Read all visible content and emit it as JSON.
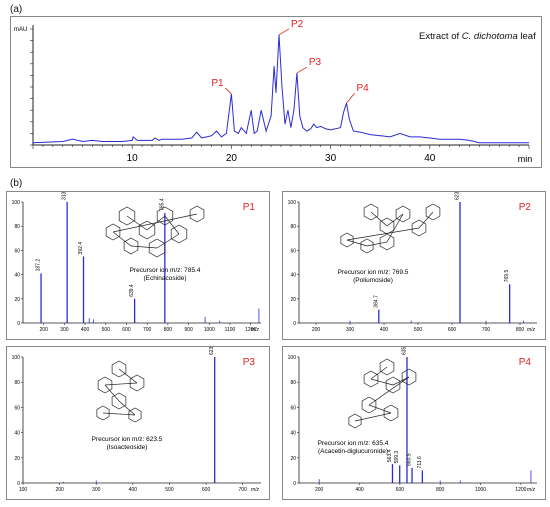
{
  "labels": {
    "a": "(a)",
    "b": "(b)"
  },
  "chromatogram": {
    "title": "Extract of C. dichotoma leaf",
    "title_prefix": "Extract of ",
    "title_italic": "C. dichotoma",
    "title_suffix": " leaf",
    "y_unit": "mAU",
    "x_unit": "min",
    "x_ticks": [
      "10",
      "20",
      "30",
      "40"
    ],
    "peaks": [
      {
        "label": "P1",
        "time": 20.0
      },
      {
        "label": "P2",
        "time": 24.8
      },
      {
        "label": "P3",
        "time": 26.6
      },
      {
        "label": "P4",
        "time": 31.6
      }
    ]
  },
  "colors": {
    "trace": "#2b2bd6",
    "peak_label": "#e02020",
    "axis": "#222222"
  },
  "chart_data": [
    {
      "type": "line",
      "panel": "(a)",
      "title": "Extract of C. dichotoma leaf",
      "ylabel": "mAU",
      "xlabel": "min",
      "xlim": [
        0,
        50
      ],
      "ylim": [
        0,
        1
      ],
      "x": [
        0,
        3,
        4,
        5,
        6,
        7,
        8,
        9,
        10,
        10.1,
        10.5,
        11,
        12,
        12.3,
        12.7,
        13,
        14,
        15,
        16,
        16.5,
        17,
        17.5,
        18,
        18.5,
        19,
        19.5,
        20,
        20.3,
        20.7,
        21,
        21.5,
        22,
        22.3,
        22.6,
        23,
        23.5,
        24,
        24.3,
        24.5,
        24.8,
        25.1,
        25.4,
        25.7,
        26,
        26.3,
        26.6,
        26.9,
        27.2,
        27.6,
        28,
        28.3,
        28.6,
        29,
        29.5,
        30,
        30.5,
        31,
        31.3,
        31.6,
        31.9,
        32.3,
        33,
        34,
        35,
        36,
        37,
        38,
        39,
        40,
        41,
        42,
        43,
        44,
        45,
        46,
        50
      ],
      "y": [
        0.02,
        0.03,
        0.05,
        0.03,
        0.04,
        0.03,
        0.03,
        0.03,
        0.04,
        0.07,
        0.04,
        0.04,
        0.04,
        0.06,
        0.04,
        0.05,
        0.05,
        0.05,
        0.06,
        0.11,
        0.06,
        0.07,
        0.08,
        0.12,
        0.07,
        0.1,
        0.44,
        0.12,
        0.1,
        0.15,
        0.1,
        0.3,
        0.1,
        0.12,
        0.3,
        0.12,
        0.25,
        0.68,
        0.45,
        0.95,
        0.5,
        0.18,
        0.3,
        0.15,
        0.3,
        0.62,
        0.25,
        0.15,
        0.12,
        0.14,
        0.18,
        0.15,
        0.16,
        0.14,
        0.13,
        0.14,
        0.15,
        0.28,
        0.36,
        0.22,
        0.12,
        0.11,
        0.09,
        0.08,
        0.07,
        0.1,
        0.07,
        0.07,
        0.06,
        0.05,
        0.05,
        0.05,
        0.04,
        0.02,
        0.02,
        0.02
      ]
    },
    {
      "type": "bar",
      "panel": "P1",
      "precursor_text": "Precursor ion m/z: 785.4",
      "compound": "(Echinacoside)",
      "xlabel": "m/z",
      "xlim": [
        100,
        800
      ],
      "ylim": [
        0,
        100
      ],
      "x_ticks": [
        "200",
        "300",
        "400",
        "500",
        "600",
        "700",
        "800",
        "900",
        "1000",
        "1100",
        "1200"
      ],
      "y_ticks": [
        "0",
        "20",
        "40",
        "60",
        "80",
        "100"
      ],
      "peaks": [
        {
          "mz": 187.2,
          "intensity": 41,
          "label": "187.2"
        },
        {
          "mz": 313.2,
          "intensity": 100,
          "label": "313.2"
        },
        {
          "mz": 392.4,
          "intensity": 55,
          "label": "392.4"
        },
        {
          "mz": 639.4,
          "intensity": 20,
          "label": "639.4"
        },
        {
          "mz": 785.4,
          "intensity": 91,
          "label": "785.4"
        }
      ]
    },
    {
      "type": "bar",
      "panel": "P2",
      "precursor_text": "Precursor ion m/z: 769.5",
      "compound": "(Poliumoside)",
      "xlabel": "m/z",
      "ylim": [
        0,
        100
      ],
      "x_ticks": [
        "200",
        "300",
        "400",
        "500",
        "600",
        "700",
        "800"
      ],
      "y_ticks": [
        "0",
        "20",
        "40",
        "60",
        "80",
        "100"
      ],
      "peaks": [
        {
          "mz": 384.7,
          "intensity": 11,
          "label": "384.7"
        },
        {
          "mz": 623.5,
          "intensity": 100,
          "label": "623.5"
        },
        {
          "mz": 769.5,
          "intensity": 32,
          "label": "769.5"
        }
      ]
    },
    {
      "type": "bar",
      "panel": "P3",
      "precursor_text": "Precursor ion m/z: 623.5",
      "compound": "(Isoacteoside)",
      "xlabel": "m/z",
      "ylim": [
        0,
        100
      ],
      "x_ticks": [
        "100",
        "200",
        "300",
        "400",
        "500",
        "600",
        "700"
      ],
      "y_ticks": [
        "0",
        "20",
        "40",
        "60",
        "80",
        "100"
      ],
      "peaks": [
        {
          "mz": 623.5,
          "intensity": 100,
          "label": "623.5"
        }
      ]
    },
    {
      "type": "bar",
      "panel": "P4",
      "precursor_text": "Precursor ion m/z: 635.4",
      "compound": "(Acacetin-diglucuronide)",
      "xlabel": "m/z",
      "ylim": [
        0,
        100
      ],
      "x_ticks": [
        "200",
        "400",
        "600",
        "800",
        "1000",
        "1200"
      ],
      "y_ticks": [
        "0",
        "20",
        "40",
        "60",
        "80",
        "100"
      ],
      "peaks": [
        {
          "mz": 563.4,
          "intensity": 15,
          "label": "563.4"
        },
        {
          "mz": 599.3,
          "intensity": 14,
          "label": "599.3"
        },
        {
          "mz": 635.4,
          "intensity": 100,
          "label": "635.4"
        },
        {
          "mz": 660.5,
          "intensity": 12,
          "label": "660.5"
        },
        {
          "mz": 711.6,
          "intensity": 10,
          "label": "711.6"
        }
      ]
    }
  ]
}
